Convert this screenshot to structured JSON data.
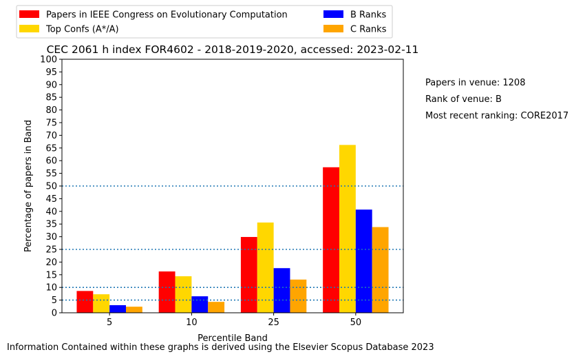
{
  "chart_data": {
    "type": "bar",
    "title": "CEC 2061 h index FOR4602 - 2018-2019-2020, accessed: 2023-02-11",
    "xlabel": "Percentile Band",
    "ylabel": "Percentage of papers in Band",
    "categories": [
      "5",
      "10",
      "25",
      "50"
    ],
    "ylim": [
      0,
      100
    ],
    "yticks": [
      0,
      5,
      10,
      15,
      20,
      25,
      30,
      35,
      40,
      45,
      50,
      55,
      60,
      65,
      70,
      75,
      80,
      85,
      90,
      95,
      100
    ],
    "grid": false,
    "reference_lines": [
      5,
      10,
      25,
      50
    ],
    "legend_position": "top-left, above plot, two columns",
    "series": [
      {
        "name": "Papers in IEEE Congress on Evolutionary Computation",
        "color": "#ff0000",
        "values": [
          8.6,
          16.3,
          29.9,
          57.4
        ]
      },
      {
        "name": "Top Confs (A*/A)",
        "color": "#ffd700",
        "values": [
          7.3,
          14.4,
          35.6,
          66.2
        ]
      },
      {
        "name": "B Ranks",
        "color": "#0000ff",
        "values": [
          3.0,
          6.5,
          17.6,
          40.7
        ]
      },
      {
        "name": "C Ranks",
        "color": "#ffa500",
        "values": [
          2.4,
          4.3,
          13.1,
          33.8
        ]
      }
    ]
  },
  "info": {
    "papers_in_venue": "Papers in venue: 1208",
    "rank_of_venue": "Rank of venue: B",
    "most_recent_ranking": "Most recent ranking: CORE2017"
  },
  "footer": "Information Contained within these graphs is derived using the Elsevier Scopus Database 2023",
  "colors": {
    "reference_line": "#1f77b4"
  }
}
